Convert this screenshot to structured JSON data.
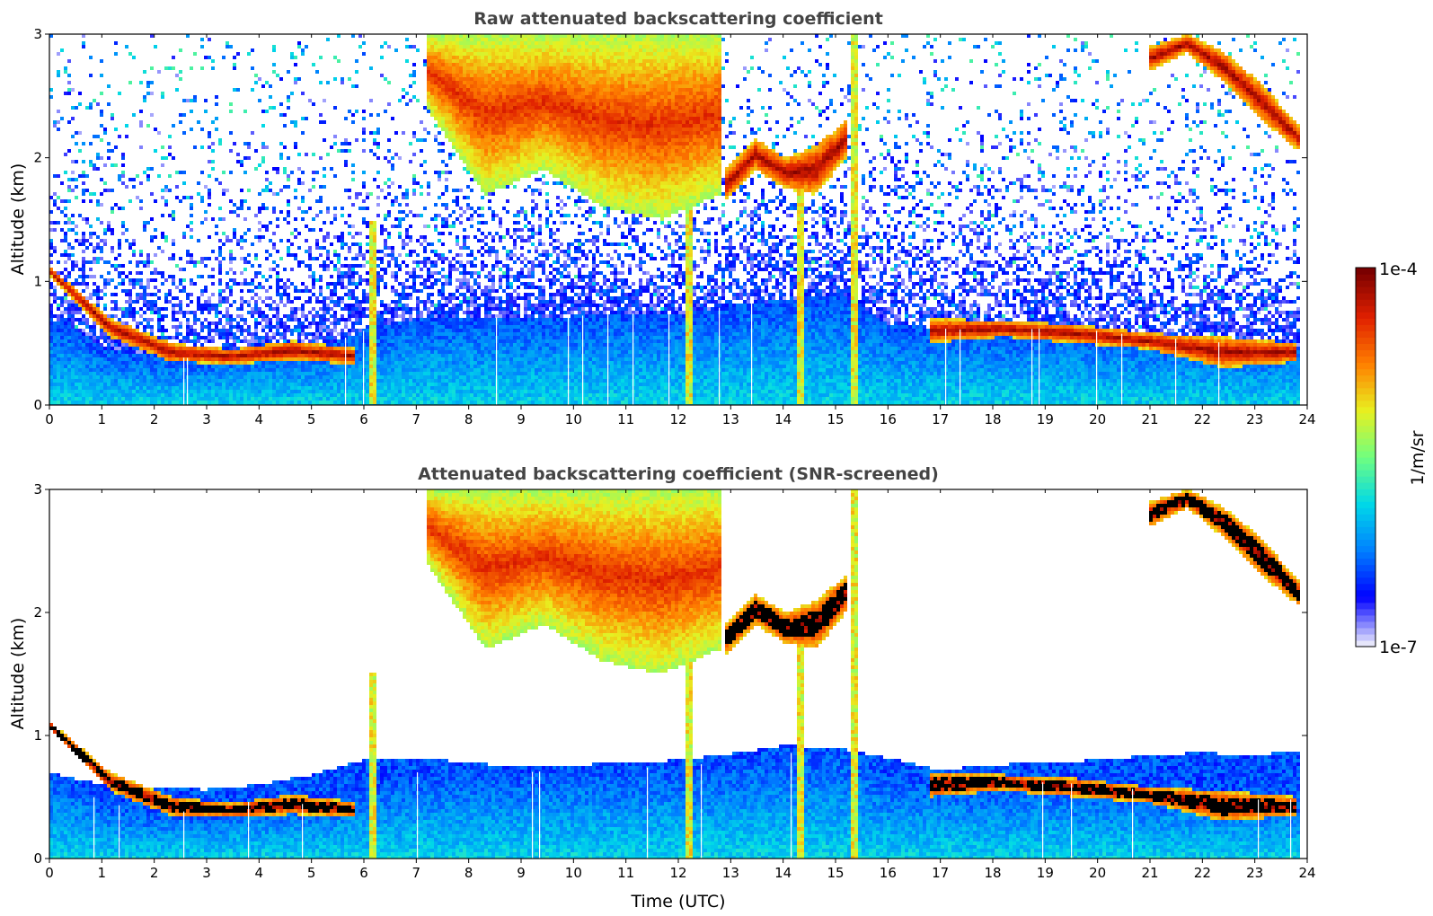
{
  "colors": {
    "background": "#ffffff",
    "title": "#444444",
    "axis": "#000000",
    "cloud_core": "#6e0000",
    "colormap": [
      "#e6e6fb",
      "#0000ff",
      "#0080ff",
      "#00d8e8",
      "#70ff80",
      "#e8f020",
      "#ff8000",
      "#e02000",
      "#7a0000"
    ]
  },
  "chart_data": [
    {
      "type": "heatmap",
      "title": "Raw attenuated backscattering coefficient",
      "xlabel": "",
      "ylabel": "Altitude (km)",
      "xlim": [
        0,
        24
      ],
      "ylim": [
        0,
        3
      ],
      "xticks": [
        "0",
        "1",
        "2",
        "3",
        "4",
        "5",
        "6",
        "7",
        "8",
        "9",
        "10",
        "11",
        "12",
        "13",
        "14",
        "15",
        "16",
        "17",
        "18",
        "19",
        "20",
        "21",
        "22",
        "23",
        "24"
      ],
      "yticks": [
        "0",
        "1",
        "2",
        "3"
      ],
      "data_end_hour": 23.85,
      "boundary_layer_top_km": [
        [
          0,
          0.7
        ],
        [
          0.5,
          0.62
        ],
        [
          1,
          0.45
        ],
        [
          2,
          0.4
        ],
        [
          3,
          0.37
        ],
        [
          3.6,
          0.46
        ],
        [
          4,
          0.46
        ],
        [
          5,
          0.44
        ],
        [
          6,
          0.6
        ],
        [
          7,
          0.7
        ],
        [
          8,
          0.72
        ],
        [
          9,
          0.7
        ],
        [
          10,
          0.72
        ],
        [
          11,
          0.74
        ],
        [
          12,
          0.74
        ],
        [
          13,
          0.8
        ],
        [
          14,
          0.85
        ],
        [
          15,
          0.9
        ],
        [
          16,
          0.66
        ],
        [
          17,
          0.62
        ],
        [
          18,
          0.6
        ],
        [
          19,
          0.62
        ],
        [
          20,
          0.6
        ],
        [
          21,
          0.55
        ],
        [
          22,
          0.52
        ],
        [
          23,
          0.48
        ],
        [
          23.85,
          0.48
        ]
      ],
      "cloud_layers": [
        {
          "name": "boundary-layer cloud",
          "start_hour": 0.0,
          "end_hour": 5.8,
          "base_km": [
            1.05,
            0.55,
            0.35,
            0.33,
            0.36,
            0.33
          ],
          "top_km": [
            1.12,
            0.7,
            0.5,
            0.45,
            0.52,
            0.46
          ],
          "value_exp": -4.0
        },
        {
          "name": "elevated cloud",
          "start_hour": 16.8,
          "end_hour": 23.8,
          "base_km": [
            0.5,
            0.55,
            0.5,
            0.45,
            0.3,
            0.35
          ],
          "top_km": [
            0.7,
            0.68,
            0.65,
            0.58,
            0.55,
            0.5
          ],
          "value_exp": -4.0
        },
        {
          "name": "mid-level cloud",
          "start_hour": 12.9,
          "end_hour": 15.2,
          "base_km": [
            1.65,
            1.9,
            1.75,
            1.7,
            2.0
          ],
          "top_km": [
            1.9,
            2.15,
            2.0,
            2.1,
            2.3
          ],
          "value_exp": -4.0
        },
        {
          "name": "upper cloud",
          "start_hour": 21.0,
          "end_hour": 23.85,
          "base_km": [
            2.7,
            2.85,
            2.6,
            2.3,
            2.05
          ],
          "top_km": [
            2.9,
            3.0,
            2.85,
            2.6,
            2.25
          ],
          "value_exp": -4.0
        },
        {
          "name": "precipitating cloud",
          "start_hour": 7.2,
          "end_hour": 12.8,
          "base_km": [
            2.4,
            1.7,
            1.9,
            1.6,
            1.5,
            1.7
          ],
          "top_km": [
            3.0,
            3.0,
            3.0,
            3.0,
            3.0,
            3.0
          ],
          "value_exp": -4.3
        }
      ],
      "fall_streaks": [
        {
          "hour": 6.15,
          "base_km": 0,
          "top_km": 1.5
        },
        {
          "hour": 12.2,
          "base_km": 0,
          "top_km": 3.0
        },
        {
          "hour": 14.35,
          "base_km": 0,
          "top_km": 1.8
        },
        {
          "hour": 15.35,
          "base_km": 0,
          "top_km": 3.0
        }
      ]
    },
    {
      "type": "heatmap",
      "title": "Attenuated backscattering coefficient (SNR-screened)",
      "xlabel": "Time (UTC)",
      "ylabel": "Altitude (km)",
      "xlim": [
        0,
        24
      ],
      "ylim": [
        0,
        3
      ],
      "xticks": [
        "0",
        "1",
        "2",
        "3",
        "4",
        "5",
        "6",
        "7",
        "8",
        "9",
        "10",
        "11",
        "12",
        "13",
        "14",
        "15",
        "16",
        "17",
        "18",
        "19",
        "20",
        "21",
        "22",
        "23",
        "24"
      ],
      "yticks": [
        "0",
        "1",
        "2",
        "3"
      ],
      "data_end_hour": 23.85,
      "screened_top_km": [
        [
          0,
          0.7
        ],
        [
          1,
          0.6
        ],
        [
          2,
          0.58
        ],
        [
          3,
          0.56
        ],
        [
          4,
          0.6
        ],
        [
          5,
          0.68
        ],
        [
          6,
          0.8
        ],
        [
          7,
          0.82
        ],
        [
          8,
          0.78
        ],
        [
          9,
          0.74
        ],
        [
          10,
          0.76
        ],
        [
          11,
          0.78
        ],
        [
          12,
          0.8
        ],
        [
          13,
          0.85
        ],
        [
          14,
          0.92
        ],
        [
          15,
          0.9
        ],
        [
          16,
          0.82
        ],
        [
          17,
          0.72
        ],
        [
          18,
          0.76
        ],
        [
          19,
          0.78
        ],
        [
          20,
          0.8
        ],
        [
          21,
          0.84
        ],
        [
          22,
          0.86
        ],
        [
          23,
          0.84
        ],
        [
          23.85,
          0.88
        ]
      ],
      "cloud_core_color": "black"
    }
  ],
  "colorbar": {
    "label": "1/m/sr",
    "max_label": "1e-4",
    "min_label": "1e-7",
    "vmin_exp": -7,
    "vmax_exp": -4,
    "scale": "log"
  }
}
